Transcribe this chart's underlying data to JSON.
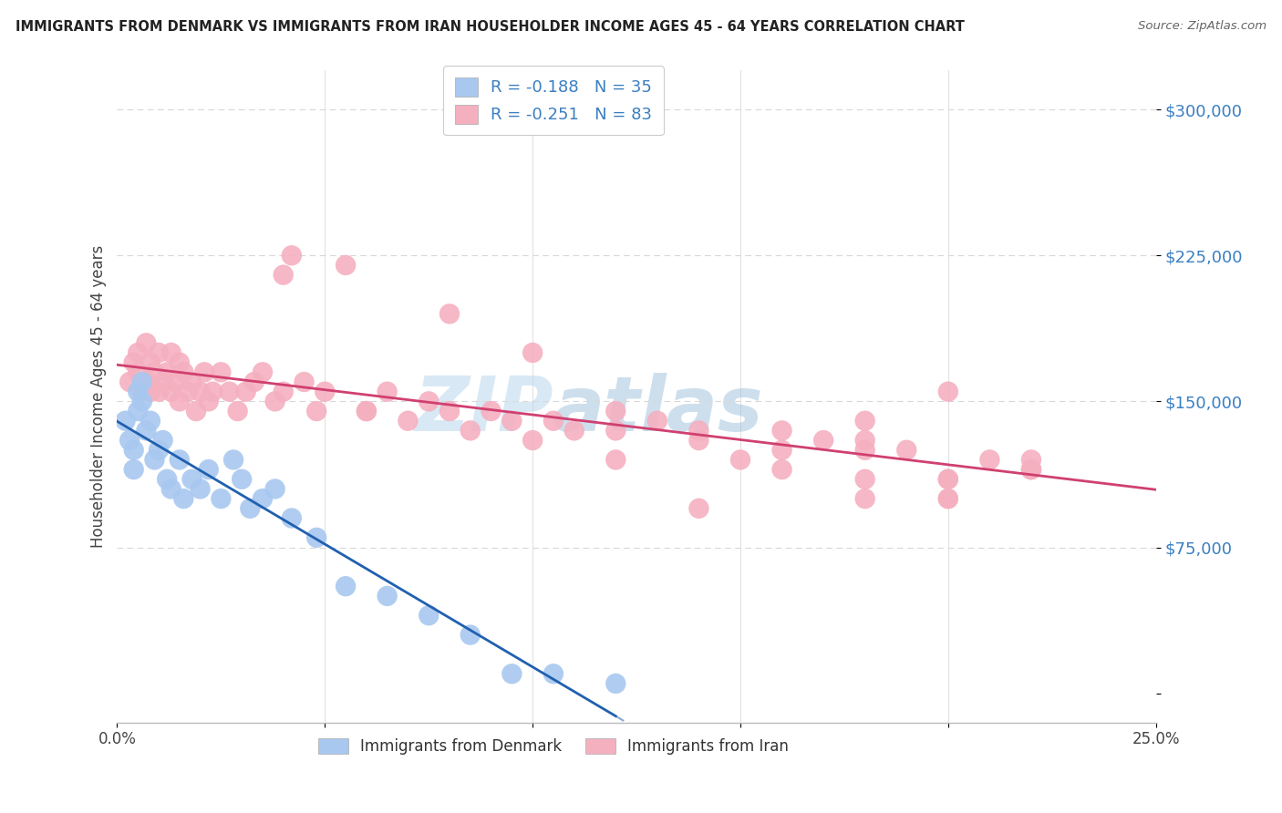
{
  "title": "IMMIGRANTS FROM DENMARK VS IMMIGRANTS FROM IRAN HOUSEHOLDER INCOME AGES 45 - 64 YEARS CORRELATION CHART",
  "source": "Source: ZipAtlas.com",
  "ylabel": "Householder Income Ages 45 - 64 years",
  "legend_denmark": {
    "R": -0.188,
    "N": 35,
    "label": "Immigrants from Denmark",
    "color": "#a8c8f0",
    "line_color": "#2060b0"
  },
  "legend_iran": {
    "R": -0.251,
    "N": 83,
    "label": "Immigrants from Iran",
    "color": "#f5b0c0",
    "line_color": "#d04070"
  },
  "watermark": "ZIPatlas",
  "xlim": [
    0.0,
    0.25
  ],
  "ylim": [
    -15000,
    320000
  ],
  "ytick_positions": [
    0,
    75000,
    150000,
    225000,
    300000
  ],
  "ytick_labels": [
    "",
    "$75,000",
    "$150,000",
    "$225,000",
    "$300,000"
  ],
  "dk_x": [
    0.002,
    0.003,
    0.004,
    0.004,
    0.005,
    0.005,
    0.006,
    0.006,
    0.007,
    0.008,
    0.009,
    0.01,
    0.011,
    0.012,
    0.013,
    0.015,
    0.016,
    0.018,
    0.02,
    0.022,
    0.025,
    0.028,
    0.03,
    0.032,
    0.035,
    0.038,
    0.042,
    0.048,
    0.055,
    0.065,
    0.075,
    0.085,
    0.095,
    0.105,
    0.12
  ],
  "dk_y": [
    140000,
    130000,
    125000,
    115000,
    155000,
    145000,
    160000,
    150000,
    135000,
    140000,
    120000,
    125000,
    130000,
    110000,
    105000,
    120000,
    100000,
    110000,
    105000,
    115000,
    100000,
    120000,
    110000,
    95000,
    100000,
    105000,
    90000,
    80000,
    55000,
    50000,
    40000,
    30000,
    10000,
    10000,
    5000
  ],
  "iran_x": [
    0.003,
    0.004,
    0.005,
    0.005,
    0.006,
    0.007,
    0.007,
    0.008,
    0.008,
    0.009,
    0.01,
    0.01,
    0.011,
    0.012,
    0.013,
    0.013,
    0.014,
    0.015,
    0.015,
    0.016,
    0.017,
    0.018,
    0.019,
    0.02,
    0.021,
    0.022,
    0.023,
    0.025,
    0.027,
    0.029,
    0.031,
    0.033,
    0.035,
    0.038,
    0.04,
    0.042,
    0.045,
    0.048,
    0.05,
    0.055,
    0.06,
    0.065,
    0.07,
    0.075,
    0.08,
    0.085,
    0.09,
    0.095,
    0.1,
    0.105,
    0.11,
    0.12,
    0.13,
    0.14,
    0.15,
    0.16,
    0.17,
    0.18,
    0.19,
    0.2,
    0.21,
    0.22,
    0.04,
    0.06,
    0.08,
    0.1,
    0.12,
    0.14,
    0.16,
    0.18,
    0.2,
    0.22,
    0.12,
    0.14,
    0.18,
    0.2,
    0.22,
    0.16,
    0.18,
    0.2,
    0.22,
    0.18,
    0.2
  ],
  "iran_y": [
    160000,
    170000,
    165000,
    175000,
    155000,
    180000,
    160000,
    170000,
    155000,
    165000,
    175000,
    155000,
    160000,
    165000,
    155000,
    175000,
    160000,
    170000,
    150000,
    165000,
    155000,
    160000,
    145000,
    155000,
    165000,
    150000,
    155000,
    165000,
    155000,
    145000,
    155000,
    160000,
    165000,
    150000,
    155000,
    225000,
    160000,
    145000,
    155000,
    220000,
    145000,
    155000,
    140000,
    150000,
    145000,
    135000,
    145000,
    140000,
    130000,
    140000,
    135000,
    145000,
    140000,
    135000,
    120000,
    135000,
    130000,
    140000,
    125000,
    155000,
    120000,
    115000,
    215000,
    145000,
    195000,
    175000,
    135000,
    130000,
    125000,
    130000,
    110000,
    120000,
    120000,
    95000,
    125000,
    100000,
    115000,
    115000,
    100000,
    110000,
    115000,
    110000,
    100000
  ]
}
